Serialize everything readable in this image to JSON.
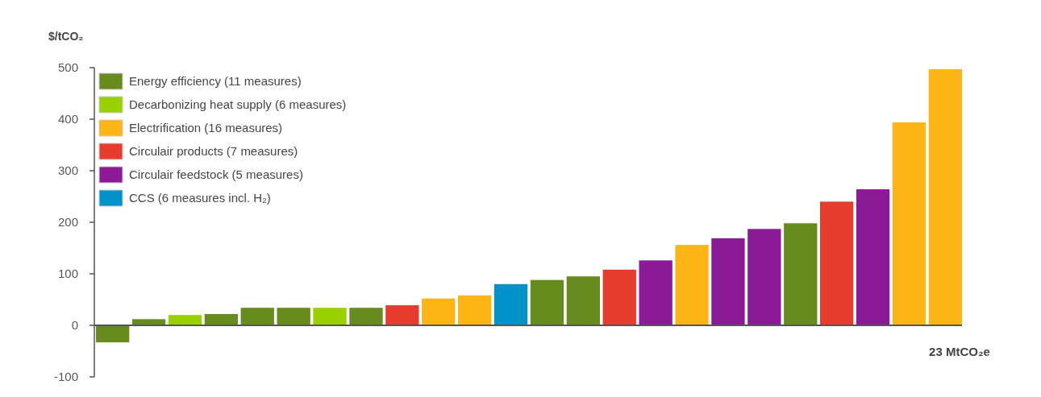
{
  "chart_data": {
    "type": "bar",
    "ylabel": "$/tCO₂",
    "categories": [
      null,
      null,
      null,
      null,
      null,
      null,
      null,
      null,
      null,
      null,
      null,
      null,
      null,
      null,
      null,
      null,
      null,
      null,
      null,
      null,
      null,
      null,
      null,
      null
    ],
    "series": [
      {
        "name": "Energy efficiency (11 measures)",
        "color": "#668b1e",
        "values": [
          -33,
          12,
          null,
          22,
          34,
          34,
          null,
          34,
          null,
          null,
          null,
          null,
          88,
          95,
          null,
          null,
          null,
          null,
          null,
          198,
          null,
          null,
          null,
          null
        ]
      },
      {
        "name": "Decarbonizing heat supply (6 measures)",
        "color": "#99d100",
        "values": [
          null,
          null,
          20,
          null,
          null,
          null,
          34,
          null,
          null,
          null,
          null,
          null,
          null,
          null,
          null,
          null,
          null,
          null,
          null,
          null,
          null,
          null,
          null,
          null
        ]
      },
      {
        "name": "Electrification (16 measures)",
        "color": "#fdb416",
        "values": [
          null,
          null,
          null,
          null,
          null,
          null,
          null,
          null,
          null,
          52,
          58,
          null,
          null,
          null,
          null,
          null,
          156,
          null,
          null,
          null,
          null,
          null,
          394,
          497
        ]
      },
      {
        "name": "Circulair products (7 measures)",
        "color": "#e63c2e",
        "values": [
          null,
          null,
          null,
          null,
          null,
          null,
          null,
          null,
          39,
          null,
          null,
          null,
          null,
          null,
          108,
          null,
          null,
          null,
          null,
          null,
          240,
          null,
          null,
          null
        ]
      },
      {
        "name": "Circulair feedstock (5 measures)",
        "color": "#8b1a96",
        "values": [
          null,
          null,
          null,
          null,
          null,
          null,
          null,
          null,
          null,
          null,
          null,
          null,
          null,
          null,
          null,
          126,
          null,
          169,
          187,
          null,
          null,
          264,
          null,
          null
        ]
      },
      {
        "name": "CCS (6 measures incl. H₂)",
        "color": "#0092c8",
        "values": [
          null,
          null,
          null,
          null,
          null,
          null,
          null,
          null,
          null,
          null,
          null,
          80,
          null,
          null,
          null,
          null,
          null,
          null,
          null,
          null,
          null,
          null,
          null,
          null
        ]
      }
    ],
    "annotations": [
      "23 MtCO₂e"
    ],
    "ylim": [
      -100,
      500
    ],
    "yticks": [
      -100,
      0,
      100,
      200,
      300,
      400,
      500
    ],
    "legend": "top left"
  }
}
